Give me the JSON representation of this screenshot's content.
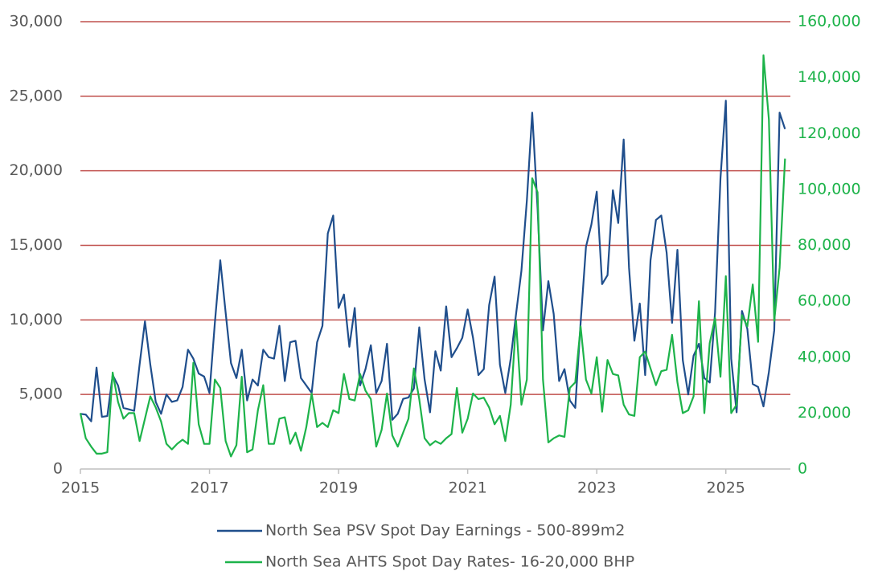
{
  "chart_data": {
    "type": "line",
    "x": [
      2015,
      2015.083,
      2015.167,
      2015.25,
      2015.333,
      2015.417,
      2015.5,
      2015.583,
      2015.667,
      2015.75,
      2015.833,
      2015.917,
      2016,
      2016.083,
      2016.167,
      2016.25,
      2016.333,
      2016.417,
      2016.5,
      2016.583,
      2016.667,
      2016.75,
      2016.833,
      2016.917,
      2017,
      2017.083,
      2017.167,
      2017.25,
      2017.333,
      2017.417,
      2017.5,
      2017.583,
      2017.667,
      2017.75,
      2017.833,
      2017.917,
      2018,
      2018.083,
      2018.167,
      2018.25,
      2018.333,
      2018.417,
      2018.5,
      2018.583,
      2018.667,
      2018.75,
      2018.833,
      2018.917,
      2019,
      2019.083,
      2019.167,
      2019.25,
      2019.333,
      2019.417,
      2019.5,
      2019.583,
      2019.667,
      2019.75,
      2019.833,
      2019.917,
      2020,
      2020.083,
      2020.167,
      2020.25,
      2020.333,
      2020.417,
      2020.5,
      2020.583,
      2020.667,
      2020.75,
      2020.833,
      2020.917,
      2021,
      2021.083,
      2021.167,
      2021.25,
      2021.333,
      2021.417,
      2021.5,
      2021.583,
      2021.667,
      2021.75,
      2021.833,
      2021.917,
      2022,
      2022.083,
      2022.167,
      2022.25,
      2022.333,
      2022.417,
      2022.5,
      2022.583,
      2022.667,
      2022.75,
      2022.833,
      2022.917,
      2023,
      2023.083,
      2023.167,
      2023.25,
      2023.333,
      2023.417,
      2023.5,
      2023.583,
      2023.667,
      2023.75,
      2023.833,
      2023.917,
      2024,
      2024.083,
      2024.167,
      2024.25,
      2024.333,
      2024.417,
      2024.5,
      2024.583,
      2024.667,
      2024.75,
      2024.833,
      2024.917,
      2025,
      2025.083,
      2025.167,
      2025.25,
      2025.333,
      2025.417,
      2025.5,
      2025.583,
      2025.667,
      2025.75,
      2025.833,
      2025.917
    ],
    "series": [
      {
        "name": "North Sea PSV Spot Day Earnings - 500-899m2",
        "color": "#1f4e8c",
        "values": [
          3700,
          3650,
          3200,
          6800,
          3500,
          3550,
          6300,
          5600,
          4100,
          4000,
          3900,
          7000,
          9900,
          7000,
          4500,
          3700,
          5000,
          4500,
          4600,
          5500,
          8000,
          7400,
          6400,
          6200,
          5100,
          9800,
          14000,
          10500,
          7100,
          6100,
          8000,
          4600,
          6000,
          5600,
          8000,
          7500,
          7400,
          9600,
          5900,
          8500,
          8600,
          6100,
          5600,
          5100,
          8500,
          9600,
          15800,
          17000,
          10800,
          11700,
          8200,
          10800,
          5600,
          6700,
          8300,
          5100,
          5900,
          8400,
          3300,
          3700,
          4700,
          4800,
          5400,
          9500,
          6000,
          3800,
          7900,
          6600,
          10900,
          7500,
          8100,
          8800,
          10700,
          8800,
          6300,
          6700,
          11000,
          12900,
          7000,
          5100,
          7400,
          10400,
          13300,
          18000,
          23900,
          17500,
          9300,
          12600,
          10400,
          5900,
          6700,
          4600,
          4100,
          9800,
          14900,
          16400,
          18600,
          12400,
          13000,
          18700,
          16500,
          22100,
          13500,
          8600,
          11100,
          6300,
          14000,
          16700,
          17000,
          14500,
          9800,
          14700,
          7300,
          5000,
          7600,
          8400,
          6100,
          5800,
          10500,
          19500,
          24700,
          7400,
          3800,
          10600,
          9400,
          5700,
          5500,
          4200,
          6500,
          9300,
          23900,
          22800
        ]
      },
      {
        "name": "North Sea AHTS Spot Day Rates- 16-20,000 BHP",
        "color": "#1db34a",
        "axis": "y2",
        "values": [
          20000,
          11000,
          8000,
          5500,
          5500,
          6000,
          34500,
          24000,
          18000,
          20000,
          20000,
          10000,
          18000,
          26000,
          22000,
          17000,
          9000,
          7000,
          9000,
          10500,
          9000,
          38000,
          16000,
          9000,
          9000,
          32000,
          29000,
          10000,
          4500,
          8500,
          33000,
          6000,
          7000,
          21000,
          30000,
          9000,
          9000,
          18000,
          18500,
          9000,
          13000,
          6500,
          15000,
          27000,
          15000,
          16500,
          15000,
          21000,
          20000,
          34000,
          25000,
          24500,
          34000,
          28000,
          25000,
          8000,
          14000,
          27000,
          12000,
          8000,
          13000,
          18000,
          36000,
          25000,
          11000,
          8500,
          10000,
          9000,
          11000,
          12500,
          29000,
          13000,
          18000,
          27000,
          25000,
          25500,
          22000,
          16000,
          19000,
          10000,
          23000,
          53000,
          23000,
          32000,
          104000,
          99000,
          32000,
          9500,
          11000,
          12000,
          11500,
          29000,
          31000,
          51000,
          32000,
          27000,
          40000,
          20500,
          39000,
          34000,
          33500,
          23000,
          19500,
          19000,
          40000,
          42000,
          36000,
          30000,
          35000,
          35500,
          48000,
          31000,
          20000,
          21000,
          26000,
          60000,
          20000,
          45000,
          54000,
          33000,
          69000,
          20000,
          23000,
          55000,
          51000,
          66000,
          45500,
          148000,
          125000,
          53000,
          72000,
          111000
        ]
      }
    ],
    "xlim": [
      2015,
      2026
    ],
    "xticks": [
      2015,
      2017,
      2019,
      2021,
      2023,
      2025
    ],
    "ylim": [
      0,
      30000
    ],
    "yticks": [
      0,
      {
        "value": 5000,
        "label": "5,000"
      },
      {
        "value": 10000,
        "label": "10,000"
      },
      {
        "value": 15000,
        "label": "15,000"
      },
      {
        "value": 20000,
        "label": "20,000"
      },
      {
        "value": 25000,
        "label": "25,000"
      },
      {
        "value": 30000,
        "label": "30,000"
      }
    ],
    "y2lim": [
      0,
      160000
    ],
    "y2ticks": [
      0,
      {
        "value": 20000,
        "label": "20,000"
      },
      {
        "value": 40000,
        "label": "40,000"
      },
      {
        "value": 60000,
        "label": "60,000"
      },
      {
        "value": 80000,
        "label": "80,000"
      },
      {
        "value": 100000,
        "label": "100,000"
      },
      {
        "value": 120000,
        "label": "120,000"
      },
      {
        "value": 140000,
        "label": "140,000"
      },
      {
        "value": 160000,
        "label": "160,000"
      }
    ],
    "grid": true,
    "grid_color": "#c0504d",
    "y2_color": "#1db34a",
    "legend": "bottom"
  }
}
